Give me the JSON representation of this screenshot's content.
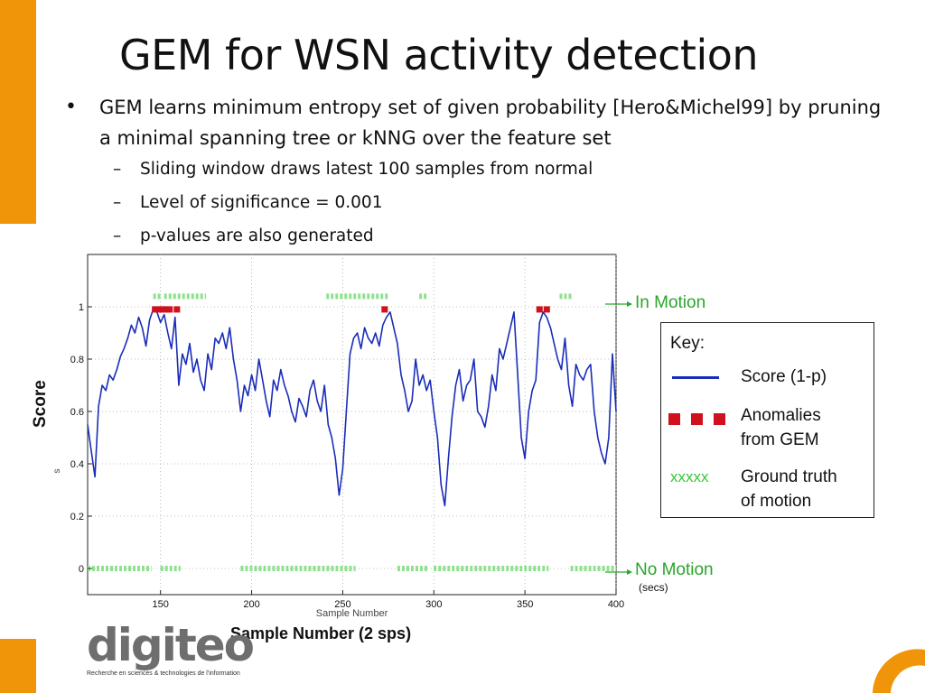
{
  "slide": {
    "title": "GEM for WSN activity detection",
    "bullet": "GEM learns minimum entropy set of given probability [Hero&Michel99] by pruning a minimal spanning tree or kNNG  over the feature set",
    "bullet_symbol": "•",
    "dash_symbol": "–",
    "sub_bullets": [
      "Sliding window draws latest 100 samples from normal",
      "Level of significance = 0.001",
      "p-values are also generated"
    ]
  },
  "logo": {
    "word": "digiteo",
    "tagline": "Recherche en sciences & technologies de l'information"
  },
  "annotations": {
    "in_motion": "In Motion",
    "no_motion": "No Motion",
    "secs": "(secs)",
    "score_label": "Score",
    "x_title": "Sample Number (2 sps)"
  },
  "key": {
    "title": "Key:",
    "score_label": "Score (1-p)",
    "anomalies_label_1": "Anomalies",
    "anomalies_label_2": "from GEM",
    "ground_marker": "xxxxx",
    "ground_label_1": "Ground truth",
    "ground_label_2": "of motion"
  },
  "colors": {
    "accent": "#f0950a",
    "score_line": "#1a2db8",
    "anomaly": "#d0101c",
    "ground_truth": "#36c736",
    "annotation_text": "#2aa52a"
  },
  "chart_data": {
    "type": "line",
    "xlabel": "Sample Number",
    "ylabel": "s",
    "xlim": [
      110,
      400
    ],
    "ylim": [
      -0.1,
      1.2
    ],
    "xticks": [
      150,
      200,
      250,
      300,
      350,
      400
    ],
    "yticks": [
      0,
      0.2,
      0.4,
      0.6,
      0.8,
      1
    ],
    "ytick_labels": [
      "0",
      "0.2",
      "0.4",
      "0.6",
      "0.8",
      "1"
    ],
    "grid": true,
    "series": [
      {
        "name": "Score (1-p)",
        "x": [
          110,
          112,
          114,
          116,
          118,
          120,
          122,
          124,
          126,
          128,
          130,
          132,
          134,
          136,
          138,
          140,
          142,
          144,
          146,
          148,
          150,
          152,
          154,
          156,
          158,
          160,
          162,
          164,
          166,
          168,
          170,
          172,
          174,
          176,
          178,
          180,
          182,
          184,
          186,
          188,
          190,
          192,
          194,
          196,
          198,
          200,
          202,
          204,
          206,
          208,
          210,
          212,
          214,
          216,
          218,
          220,
          222,
          224,
          226,
          228,
          230,
          232,
          234,
          236,
          238,
          240,
          242,
          244,
          246,
          248,
          250,
          252,
          254,
          256,
          258,
          260,
          262,
          264,
          266,
          268,
          270,
          272,
          274,
          276,
          278,
          280,
          282,
          284,
          286,
          288,
          290,
          292,
          294,
          296,
          298,
          300,
          302,
          304,
          306,
          308,
          310,
          312,
          314,
          316,
          318,
          320,
          322,
          324,
          326,
          328,
          330,
          332,
          334,
          336,
          338,
          340,
          342,
          344,
          346,
          348,
          350,
          352,
          354,
          356,
          358,
          360,
          362,
          364,
          366,
          368,
          370,
          372,
          374,
          376,
          378,
          380,
          382,
          384,
          386,
          388,
          390,
          392,
          394,
          396,
          398,
          400
        ],
        "y": [
          0.55,
          0.45,
          0.35,
          0.62,
          0.7,
          0.68,
          0.74,
          0.72,
          0.76,
          0.81,
          0.84,
          0.88,
          0.93,
          0.9,
          0.96,
          0.92,
          0.85,
          0.95,
          0.99,
          0.98,
          0.94,
          0.97,
          0.9,
          0.84,
          0.96,
          0.7,
          0.82,
          0.78,
          0.86,
          0.75,
          0.8,
          0.72,
          0.68,
          0.82,
          0.76,
          0.88,
          0.86,
          0.9,
          0.84,
          0.92,
          0.8,
          0.72,
          0.6,
          0.7,
          0.66,
          0.74,
          0.68,
          0.8,
          0.72,
          0.64,
          0.58,
          0.72,
          0.68,
          0.76,
          0.7,
          0.66,
          0.6,
          0.56,
          0.65,
          0.62,
          0.58,
          0.68,
          0.72,
          0.64,
          0.6,
          0.7,
          0.55,
          0.5,
          0.42,
          0.28,
          0.38,
          0.6,
          0.82,
          0.88,
          0.9,
          0.84,
          0.92,
          0.88,
          0.86,
          0.9,
          0.85,
          0.93,
          0.96,
          0.98,
          0.92,
          0.86,
          0.74,
          0.68,
          0.6,
          0.64,
          0.8,
          0.7,
          0.74,
          0.68,
          0.72,
          0.6,
          0.5,
          0.32,
          0.24,
          0.42,
          0.58,
          0.7,
          0.76,
          0.64,
          0.7,
          0.72,
          0.8,
          0.6,
          0.58,
          0.54,
          0.62,
          0.74,
          0.68,
          0.84,
          0.8,
          0.86,
          0.92,
          0.98,
          0.74,
          0.5,
          0.42,
          0.6,
          0.68,
          0.72,
          0.94,
          0.98,
          0.96,
          0.92,
          0.86,
          0.8,
          0.76,
          0.88,
          0.7,
          0.62,
          0.78,
          0.74,
          0.72,
          0.76,
          0.78,
          0.6,
          0.5,
          0.44,
          0.4,
          0.5,
          0.82,
          0.6
        ]
      }
    ],
    "anomalies": {
      "name": "Anomalies from GEM",
      "x": [
        147,
        149,
        151,
        153,
        155,
        159,
        273,
        358,
        362
      ],
      "y": 0.99
    },
    "ground_truth": {
      "name": "Ground truth of motion",
      "in_motion_level": 1.04,
      "no_motion_level": 0,
      "in_motion_segments": [
        [
          146,
          150
        ],
        [
          152,
          175
        ],
        [
          241,
          275
        ],
        [
          292,
          297
        ],
        [
          369,
          376
        ]
      ],
      "no_motion_segments": [
        [
          110,
          145
        ],
        [
          150,
          161
        ],
        [
          194,
          257
        ],
        [
          280,
          297
        ],
        [
          300,
          363
        ],
        [
          375,
          400
        ]
      ]
    }
  }
}
